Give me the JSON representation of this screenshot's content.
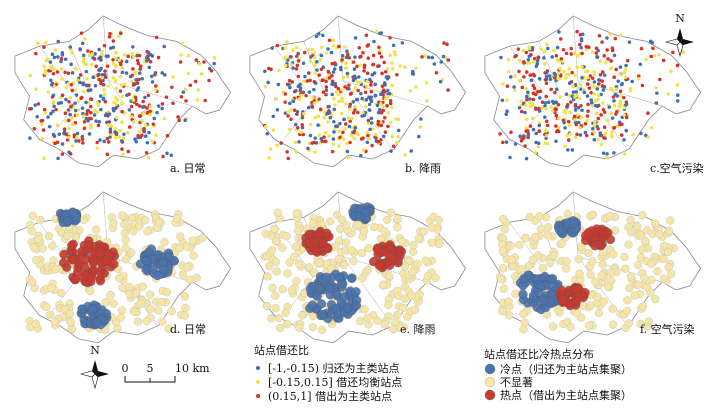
{
  "panels": [
    {
      "label": "a. 日常"
    },
    {
      "label": "b. 降雨"
    },
    {
      "label": "c.空气污染"
    },
    {
      "label": "d. 日常"
    },
    {
      "label": "e. 降雨"
    },
    {
      "label": "f. 空气污染"
    }
  ],
  "north": "N",
  "scale": {
    "labels": [
      "0",
      "5",
      "10 km"
    ]
  },
  "legend_ratio": {
    "title": "站点借还比",
    "items": [
      "[-1,-0.15) 归还为主类站点",
      "[-0.15,0.15] 借还均衡站点",
      "(0.15,1] 借出为主类站点"
    ]
  },
  "legend_hotspot": {
    "title": "站点借还比冷热点分布",
    "items": [
      "冷点（归还为主站点集聚）",
      "不显著",
      "热点（借出为主站点集聚）"
    ]
  }
}
